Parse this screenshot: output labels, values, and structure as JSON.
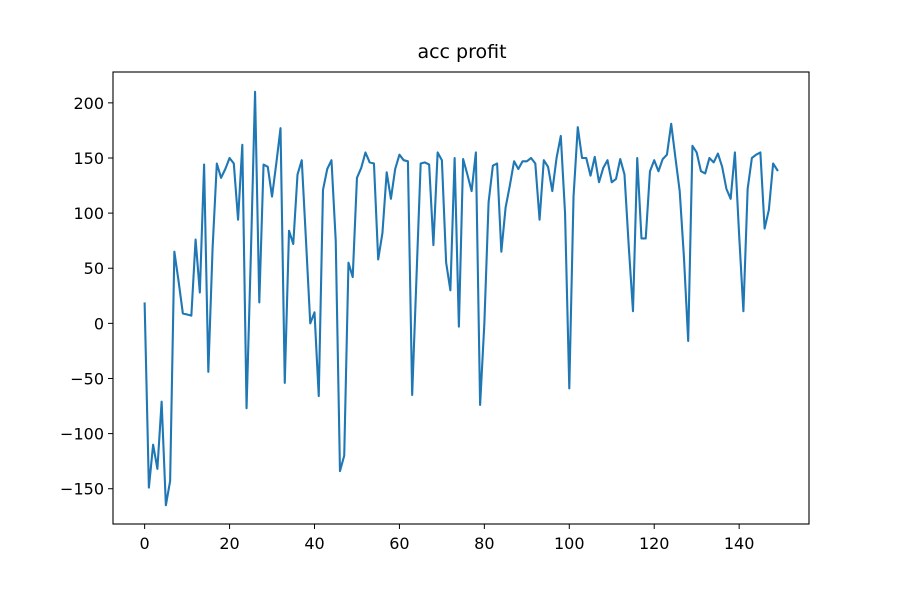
{
  "chart_data": {
    "type": "line",
    "title": "acc profit",
    "xlabel": "",
    "ylabel": "",
    "xlim": [
      -7.45,
      156.45
    ],
    "ylim": [
      -182,
      228
    ],
    "x_ticks": [
      0,
      20,
      40,
      60,
      80,
      100,
      120,
      140
    ],
    "y_ticks": [
      -150,
      -100,
      -50,
      0,
      50,
      100,
      150,
      200
    ],
    "grid": false,
    "legend": "none",
    "series": [
      {
        "color": "#1f77b4",
        "x": [
          0,
          1,
          2,
          3,
          4,
          5,
          6,
          7,
          8,
          9,
          10,
          11,
          12,
          13,
          14,
          15,
          16,
          17,
          18,
          19,
          20,
          21,
          22,
          23,
          24,
          25,
          26,
          27,
          28,
          29,
          30,
          31,
          32,
          33,
          34,
          35,
          36,
          37,
          38,
          39,
          40,
          41,
          42,
          43,
          44,
          45,
          46,
          47,
          48,
          49,
          50,
          51,
          52,
          53,
          54,
          55,
          56,
          57,
          58,
          59,
          60,
          61,
          62,
          63,
          64,
          65,
          66,
          67,
          68,
          69,
          70,
          71,
          72,
          73,
          74,
          75,
          76,
          77,
          78,
          79,
          80,
          81,
          82,
          83,
          84,
          85,
          86,
          87,
          88,
          89,
          90,
          91,
          92,
          93,
          94,
          95,
          96,
          97,
          98,
          99,
          100,
          101,
          102,
          103,
          104,
          105,
          106,
          107,
          108,
          109,
          110,
          111,
          112,
          113,
          114,
          115,
          116,
          117,
          118,
          119,
          120,
          121,
          122,
          123,
          124,
          125,
          126,
          127,
          128,
          129,
          130,
          131,
          132,
          133,
          134,
          135,
          136,
          137,
          138,
          139,
          140,
          141,
          142,
          143,
          144,
          145,
          146,
          147,
          148,
          149
        ],
        "values": [
          18,
          -149,
          -110,
          -132,
          -71,
          -165,
          -143,
          65,
          38,
          9,
          8,
          7,
          76,
          28,
          144,
          -44,
          68,
          145,
          132,
          140,
          150,
          145,
          94,
          162,
          -77,
          60,
          210,
          19,
          144,
          142,
          115,
          145,
          177,
          -54,
          84,
          72,
          135,
          148,
          75,
          0,
          10,
          -66,
          121,
          140,
          148,
          75,
          -134,
          -120,
          55,
          42,
          132,
          141,
          155,
          146,
          145,
          58,
          82,
          137,
          113,
          140,
          153,
          148,
          147,
          -65,
          40,
          145,
          146,
          144,
          71,
          155,
          148,
          55,
          30,
          150,
          -3,
          149,
          135,
          120,
          155,
          -74,
          0,
          110,
          143,
          145,
          65,
          105,
          125,
          147,
          140,
          147,
          147,
          150,
          145,
          94,
          148,
          142,
          120,
          150,
          170,
          100,
          -59,
          115,
          178,
          150,
          150,
          134,
          151,
          128,
          141,
          148,
          128,
          131,
          149,
          135,
          70,
          11,
          150,
          77,
          77,
          138,
          148,
          138,
          149,
          153,
          181,
          150,
          120,
          60,
          -16,
          161,
          155,
          138,
          136,
          150,
          146,
          154,
          142,
          122,
          113,
          155,
          80,
          11,
          122,
          150,
          153,
          155,
          86,
          103,
          145,
          139
        ]
      }
    ]
  }
}
